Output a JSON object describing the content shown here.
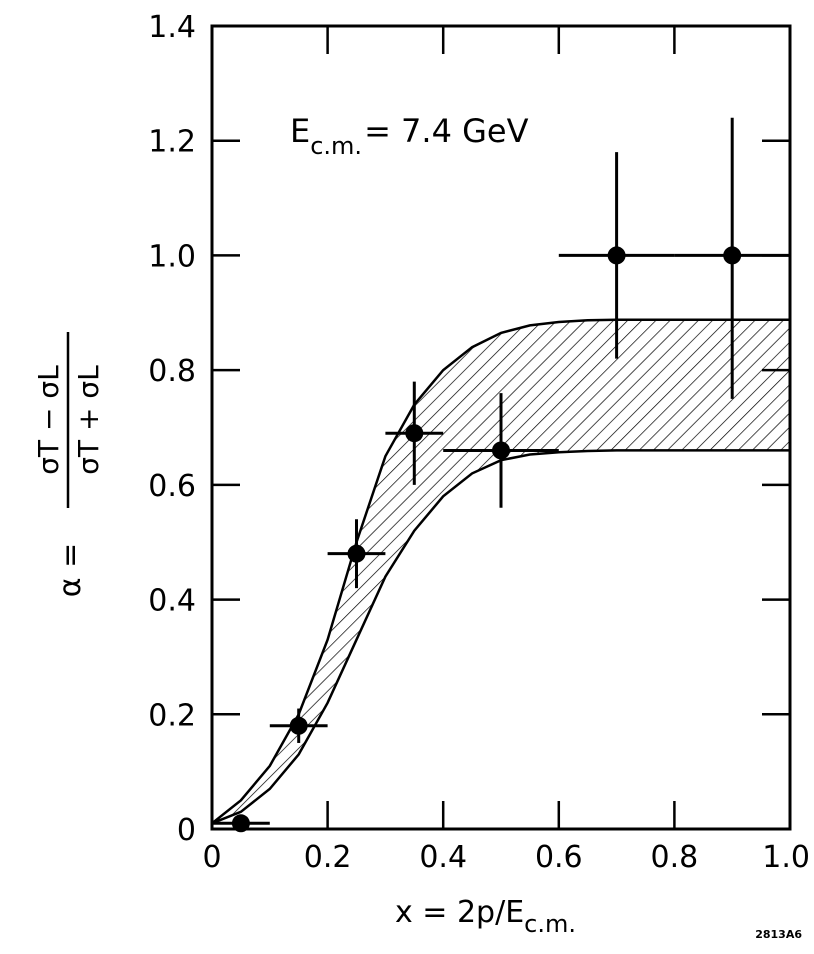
{
  "chart_data": {
    "type": "scatter",
    "annotation": {
      "prefix": "E",
      "subscript": "c.m.",
      "rest": "= 7.4 GeV"
    },
    "xlabel": {
      "main": "x = 2p/E",
      "subscript": "c.m."
    },
    "ylabel": {
      "alpha": "α =",
      "numerator": "σT − σL",
      "denominator": "σT + σL"
    },
    "xlim": [
      0,
      1.0
    ],
    "ylim": [
      0,
      1.4
    ],
    "x_ticks": [
      0,
      0.2,
      0.4,
      0.6,
      0.8,
      1.0
    ],
    "x_tick_labels": [
      "0",
      "0.2",
      "0.4",
      "0.6",
      "0.8",
      "1.0"
    ],
    "y_ticks": [
      0,
      0.2,
      0.4,
      0.6,
      0.8,
      1.0,
      1.2,
      1.4
    ],
    "y_tick_labels": [
      "0",
      "0.2",
      "0.4",
      "0.6",
      "0.8",
      "1.0",
      "1.2",
      "1.4"
    ],
    "grid": false,
    "series": [
      {
        "points": [
          {
            "x": 0.05,
            "y": 0.01,
            "xerr": [
              0.0,
              0.1
            ],
            "yerr": [
              0.0,
              0.02
            ]
          },
          {
            "x": 0.15,
            "y": 0.18,
            "xerr": [
              0.1,
              0.2
            ],
            "yerr": [
              0.15,
              0.21
            ]
          },
          {
            "x": 0.25,
            "y": 0.48,
            "xerr": [
              0.2,
              0.3
            ],
            "yerr": [
              0.42,
              0.54
            ]
          },
          {
            "x": 0.35,
            "y": 0.69,
            "xerr": [
              0.3,
              0.4
            ],
            "yerr": [
              0.6,
              0.78
            ]
          },
          {
            "x": 0.5,
            "y": 0.66,
            "xerr": [
              0.4,
              0.6
            ],
            "yerr": [
              0.56,
              0.76
            ]
          },
          {
            "x": 0.7,
            "y": 1.0,
            "xerr": [
              0.6,
              0.8
            ],
            "yerr": [
              0.82,
              1.18
            ]
          },
          {
            "x": 0.9,
            "y": 1.0,
            "xerr": [
              0.8,
              1.0
            ],
            "yerr": [
              0.75,
              1.24
            ]
          }
        ]
      }
    ],
    "band": {
      "x": [
        0.0,
        0.05,
        0.1,
        0.15,
        0.2,
        0.25,
        0.3,
        0.35,
        0.4,
        0.45,
        0.5,
        0.55,
        0.6,
        0.65,
        0.7,
        0.8,
        0.9,
        1.0
      ],
      "upper": [
        0.01,
        0.05,
        0.11,
        0.2,
        0.33,
        0.5,
        0.65,
        0.74,
        0.8,
        0.84,
        0.865,
        0.878,
        0.884,
        0.887,
        0.888,
        0.888,
        0.888,
        0.888
      ],
      "lower": [
        0.01,
        0.03,
        0.07,
        0.13,
        0.22,
        0.33,
        0.44,
        0.52,
        0.58,
        0.62,
        0.643,
        0.653,
        0.657,
        0.659,
        0.66,
        0.66,
        0.66,
        0.66
      ]
    },
    "figure_id": "2813A6"
  }
}
